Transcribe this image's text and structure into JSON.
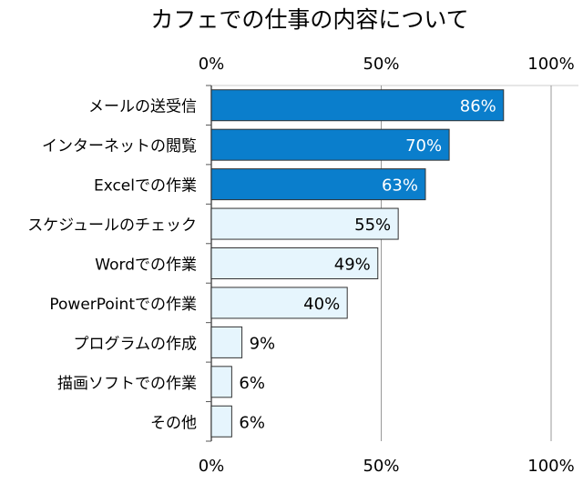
{
  "chart_data": {
    "type": "bar",
    "orientation": "horizontal",
    "title": "カフェでの仕事の内容について",
    "categories": [
      "メールの送受信",
      "インターネットの閲覧",
      "Excelでの作業",
      "スケジュールのチェック",
      "Wordでの作業",
      "PowerPointでの作業",
      "プログラムの作成",
      "描画ソフトでの作業",
      "その他"
    ],
    "values": [
      86,
      70,
      63,
      55,
      49,
      40,
      9,
      6,
      6
    ],
    "data_labels": [
      "86%",
      "70%",
      "63%",
      "55%",
      "49%",
      "40%",
      "9%",
      "6%",
      "6%"
    ],
    "highlight_count": 3,
    "xlim": [
      0,
      100
    ],
    "x_ticks": [
      0,
      50,
      100
    ],
    "x_tick_labels": [
      "0%",
      "50%",
      "100%"
    ],
    "xlabel": "",
    "ylabel": "",
    "grid": true,
    "colors": {
      "highlight": "#0A7ECC",
      "normal": "#E6F5FD",
      "border": "#333333",
      "grid": "#999999"
    }
  }
}
